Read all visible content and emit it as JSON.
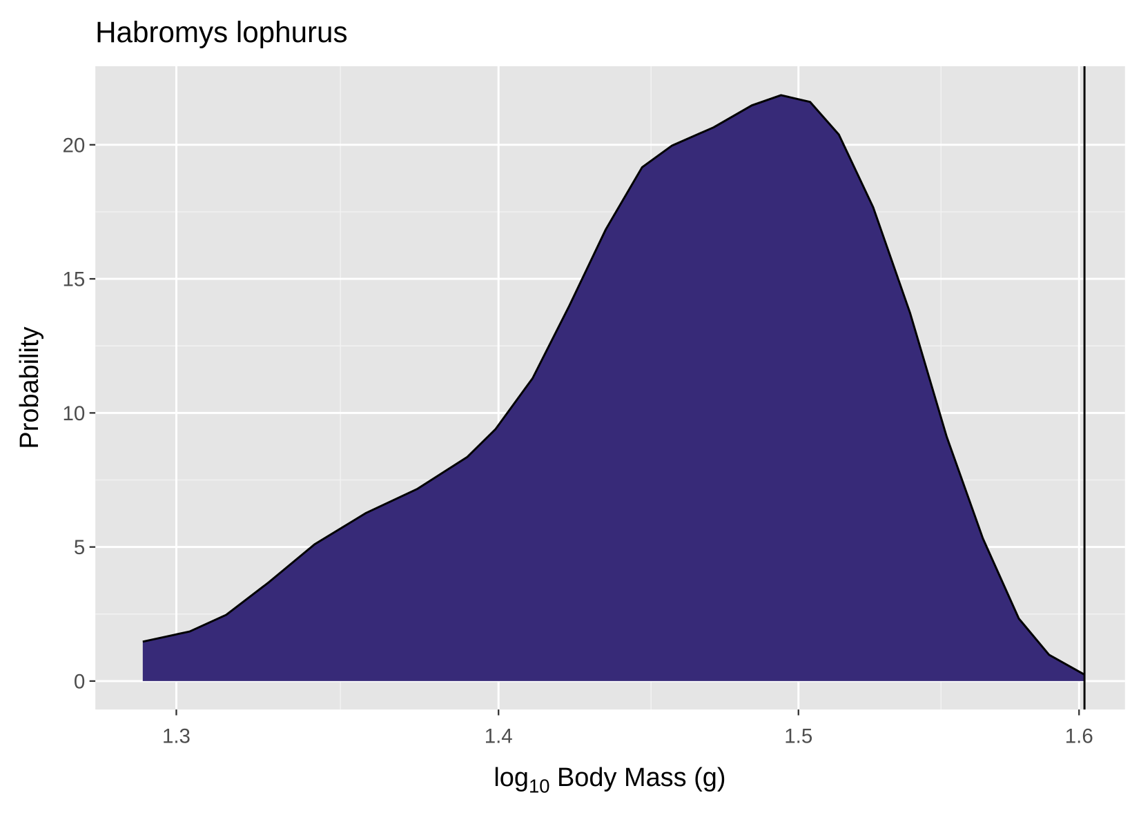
{
  "chart_data": {
    "type": "density",
    "title": "Habromys lophurus",
    "x_label_parts": [
      "log",
      "10",
      " Body Mass (g)"
    ],
    "y_label": "Probability",
    "x": [
      1.29,
      1.304,
      1.315,
      1.328,
      1.342,
      1.358,
      1.374,
      1.39,
      1.399,
      1.411,
      1.423,
      1.435,
      1.447,
      1.457,
      1.471,
      1.484,
      1.494,
      1.504,
      1.514,
      1.526,
      1.539,
      1.552,
      1.565,
      1.578,
      1.589,
      1.602
    ],
    "values": [
      1.47,
      1.85,
      2.47,
      3.69,
      5.1,
      6.27,
      7.16,
      8.36,
      9.39,
      11.29,
      14.0,
      16.85,
      19.16,
      19.97,
      20.65,
      21.47,
      21.85,
      21.6,
      20.38,
      17.67,
      13.73,
      9.12,
      5.32,
      2.33,
      0.98,
      0.24
    ],
    "color": "#372A78",
    "vline": 1.602,
    "xscale": "log",
    "xlim": [
      1.276,
      1.617
    ],
    "ylim": [
      -1.06,
      22.93
    ],
    "xticks": [
      1.3,
      1.4,
      1.5,
      1.6
    ],
    "yticks": [
      0,
      5,
      10,
      15,
      20
    ],
    "xminor": [
      1.35,
      1.45,
      1.55
    ],
    "yminor": [
      2.5,
      7.5,
      12.5,
      17.5
    ],
    "grid": true
  }
}
